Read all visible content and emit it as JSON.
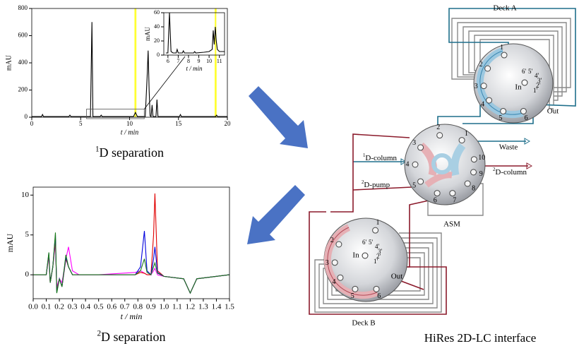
{
  "chart_data": [
    {
      "type": "line",
      "ylabel": "mAU",
      "xlabel": "t / min",
      "caption_sup": "1",
      "caption": "D  separation",
      "xlim": [
        0,
        20
      ],
      "ylim": [
        0,
        800
      ],
      "xticks": [
        0,
        5,
        10,
        15,
        20
      ],
      "yticks": [
        0,
        200,
        400,
        600,
        800
      ],
      "color": "#000000",
      "highlight_color": "#ffff33",
      "highlights": [
        [
          10.5,
          10.7
        ],
        [
          18.7,
          18.9
        ]
      ],
      "x": [
        0,
        1,
        1.1,
        1.2,
        3.8,
        3.9,
        4.0,
        6.0,
        6.15,
        6.25,
        6.4,
        7.0,
        7.1,
        7.2,
        10.4,
        10.5,
        10.6,
        10.7,
        10.8,
        11.6,
        11.8,
        11.9,
        12.0,
        12.1,
        12.2,
        12.3,
        12.4,
        12.7,
        12.8,
        12.9,
        13.5,
        15.1,
        15.2,
        15.3,
        18.8,
        18.9,
        19.0,
        20
      ],
      "values": [
        5,
        5,
        20,
        5,
        5,
        15,
        5,
        5,
        700,
        5,
        5,
        5,
        15,
        5,
        5,
        20,
        35,
        20,
        5,
        5,
        300,
        490,
        200,
        10,
        5,
        90,
        5,
        5,
        130,
        5,
        5,
        5,
        20,
        5,
        5,
        15,
        5,
        5
      ]
    },
    {
      "type": "line",
      "ylabel": "mAU",
      "xlabel": "t / min",
      "xlim": [
        5.6,
        11.5
      ],
      "ylim": [
        0,
        60
      ],
      "xticks": [
        6,
        7,
        8,
        9,
        10,
        11
      ],
      "yticks": [
        0,
        20,
        40,
        60
      ],
      "color": "#000000",
      "highlight_color": "#ffff33",
      "highlights": [
        [
          10.55,
          10.7
        ]
      ],
      "x": [
        5.8,
        6.0,
        6.15,
        6.3,
        6.5,
        6.8,
        6.9,
        7.0,
        7.4,
        7.5,
        7.6,
        8.5,
        8.6,
        8.7,
        9.5,
        10.0,
        10.3,
        10.4,
        10.5,
        10.6,
        10.7,
        10.8,
        11.0,
        11.5
      ],
      "values": [
        3,
        3,
        60,
        5,
        3,
        3,
        8,
        3,
        3,
        6,
        3,
        3,
        5,
        3,
        4,
        5,
        8,
        35,
        15,
        40,
        20,
        8,
        5,
        5
      ]
    },
    {
      "type": "line",
      "ylabel": "mAU",
      "xlabel": "t / min",
      "caption_sup": "2",
      "caption": "D  separation",
      "xlim": [
        0,
        1.5
      ],
      "ylim": [
        -3,
        11
      ],
      "xticks": [
        {
          "value": 0,
          "label": "0.0"
        },
        0.1,
        0.2,
        0.3,
        0.4,
        0.5,
        0.6,
        0.7,
        0.8,
        0.9,
        {
          "value": 1,
          "label": "1.0"
        },
        1.1,
        1.2,
        1.3,
        1.4,
        1.5
      ],
      "yticks": [
        0,
        5,
        10
      ],
      "x": [
        0,
        0.1,
        0.12,
        0.13,
        0.15,
        0.17,
        0.18,
        0.2,
        0.22,
        0.25,
        0.27,
        0.3,
        0.35,
        0.5,
        0.78,
        0.82,
        0.85,
        0.87,
        0.9,
        0.92,
        0.93,
        0.95,
        1.0,
        1.15,
        1.2,
        1.25,
        1.5
      ],
      "series": [
        {
          "color": "#ff00ff",
          "values": [
            0,
            0,
            2.3,
            -1,
            1,
            4,
            -1.5,
            -0.5,
            -1,
            2,
            3.5,
            0.5,
            0,
            0,
            0.3,
            0.5,
            0.2,
            0,
            0,
            0.5,
            0.8,
            0,
            -0.2,
            -0.5,
            -2.3,
            -0.5,
            0
          ]
        },
        {
          "color": "#e00000",
          "values": [
            0,
            0,
            2.5,
            -1,
            1,
            4.5,
            -2,
            -0.5,
            -1.5,
            2,
            1,
            0,
            0,
            0,
            0,
            0.3,
            0.2,
            0,
            0,
            5,
            10.2,
            0.5,
            -0.2,
            -0.5,
            -2.3,
            -0.5,
            0
          ]
        },
        {
          "color": "#0000dd",
          "values": [
            0,
            0,
            2.7,
            -1,
            1,
            5,
            -2.2,
            -0.5,
            -1.5,
            2.2,
            1,
            0,
            0,
            0,
            0,
            1,
            5.5,
            0.5,
            0,
            2,
            3.5,
            0.3,
            -0.2,
            -0.5,
            -2.3,
            -0.5,
            0
          ]
        },
        {
          "color": "#1a7a1a",
          "values": [
            0,
            0,
            2.8,
            -1,
            1,
            5.3,
            -2.3,
            -0.5,
            -1.5,
            2.5,
            1,
            0,
            0,
            0,
            0,
            0.5,
            2,
            0.3,
            0,
            1,
            1.5,
            0.2,
            -0.2,
            -0.5,
            -2.3,
            -0.5,
            0
          ]
        }
      ]
    }
  ],
  "diagram": {
    "title": "HiRes 2D-LC interface",
    "waste": "Waste",
    "d1_column": {
      "sup": "1",
      "text": "D-column"
    },
    "d2_column": {
      "sup": "2",
      "text": "D-column"
    },
    "d2_pump": {
      "sup": "2",
      "text": "D-pump"
    },
    "asm": {
      "label": "ASM",
      "ports": [
        "1",
        "2",
        "3",
        "4",
        "5",
        "6",
        "7",
        "8",
        "9",
        "10"
      ]
    },
    "deck_a": {
      "label": "Deck A",
      "ports": [
        "1",
        "2",
        "3",
        "4",
        "5",
        "6"
      ],
      "inner_ports": [
        "6'",
        "5'",
        "4'",
        "3'",
        "2'",
        "1'"
      ],
      "in": "In",
      "out": "Out"
    },
    "deck_b": {
      "label": "Deck B",
      "ports": [
        "1",
        "2",
        "3",
        "4",
        "5",
        "6"
      ],
      "inner_ports": [
        "6'",
        "5'",
        "4'",
        "3'",
        "2'",
        "1'"
      ],
      "in": "In",
      "out": "Out"
    }
  }
}
